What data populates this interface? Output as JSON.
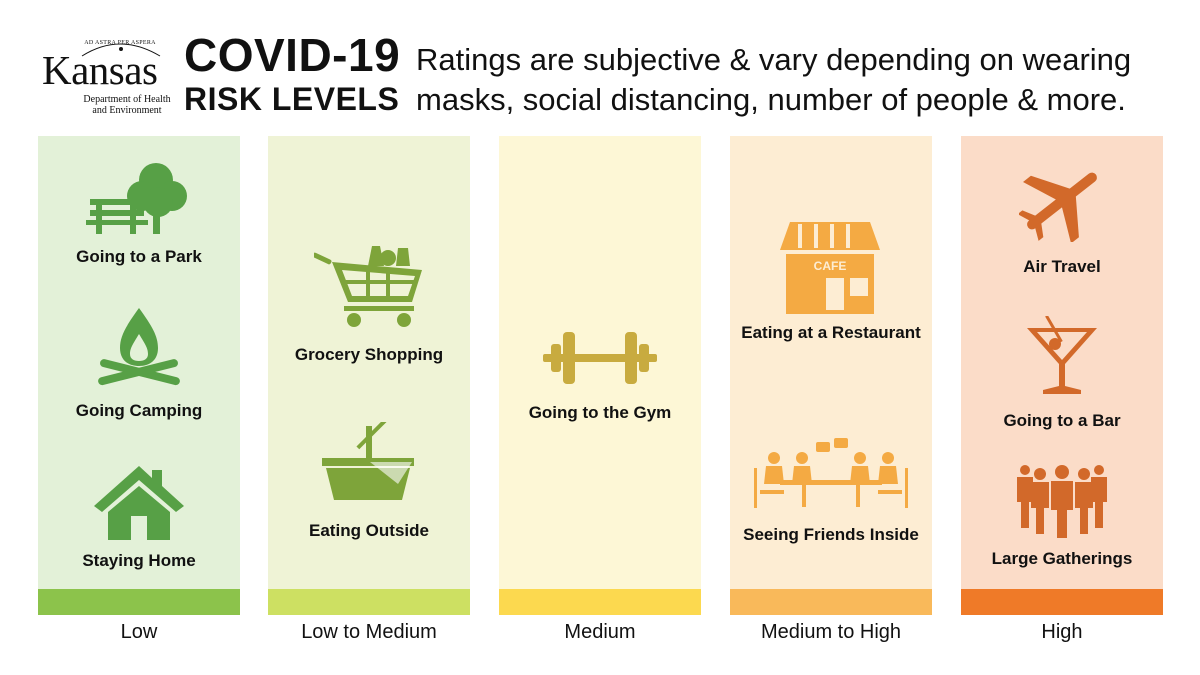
{
  "header": {
    "logo": {
      "motto": "AD ASTRA PER ASPERA",
      "name": "Kansas",
      "sub_line1": "Department of Health",
      "sub_line2": "and Environment"
    },
    "title_line1": "COVID-19",
    "title_line2": "RISK LEVELS",
    "tagline": "Ratings are subjective & vary depending on wearing masks, social distancing, number of people & more."
  },
  "levels": [
    {
      "name": "Low",
      "bg": "#e3f1d8",
      "bar": "#8cc34b",
      "icon_color": "#57a046",
      "items": [
        {
          "label": "Going to a Park",
          "icon": "park-icon"
        },
        {
          "label": "Going Camping",
          "icon": "campfire-icon"
        },
        {
          "label": "Staying Home",
          "icon": "house-icon"
        }
      ]
    },
    {
      "name": "Low to Medium",
      "bg": "#eff3d6",
      "bar": "#cde062",
      "icon_color": "#7ea43a",
      "items": [
        {
          "label": "Grocery Shopping",
          "icon": "shopping-cart-icon"
        },
        {
          "label": "Eating Outside",
          "icon": "picnic-basket-icon"
        }
      ]
    },
    {
      "name": "Medium",
      "bg": "#fdf7d6",
      "bar": "#fcd94f",
      "icon_color": "#c8ab3f",
      "items": [
        {
          "label": "Going to the Gym",
          "icon": "dumbbell-icon"
        }
      ]
    },
    {
      "name": "Medium to High",
      "bg": "#fdedd3",
      "bar": "#f9b95a",
      "icon_color": "#f4aa43",
      "items": [
        {
          "label": "Eating at a Restaurant",
          "icon": "cafe-icon",
          "sign": "CAFE"
        },
        {
          "label": "Seeing Friends Inside",
          "icon": "friends-table-icon"
        }
      ]
    },
    {
      "name": "High",
      "bg": "#fbdcc8",
      "bar": "#ef7a28",
      "icon_color": "#d2692a",
      "items": [
        {
          "label": "Air Travel",
          "icon": "airplane-icon"
        },
        {
          "label": "Going to a Bar",
          "icon": "cocktail-icon"
        },
        {
          "label": "Large Gatherings",
          "icon": "crowd-icon"
        }
      ]
    }
  ]
}
